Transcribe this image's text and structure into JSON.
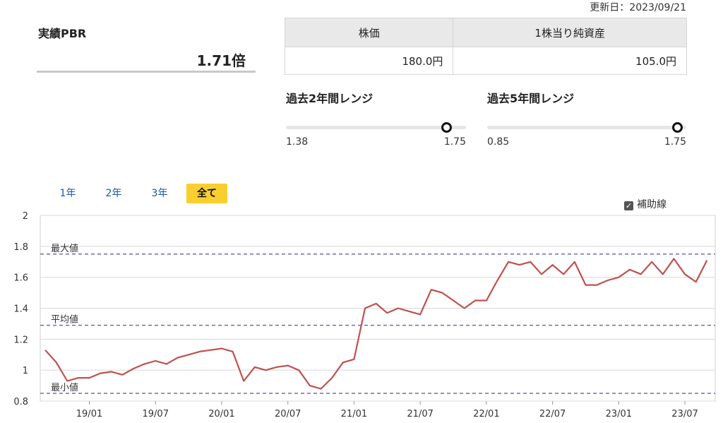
{
  "updated": "更新日：2023/09/21",
  "pbr": {
    "label": "実績PBR",
    "value": "1.71倍"
  },
  "price_table": {
    "headers": [
      "株価",
      "1株当り純資産"
    ],
    "values": [
      "180.0円",
      "105.0円"
    ]
  },
  "ranges": [
    {
      "title": "過去2年間レンジ",
      "min": "1.38",
      "max": "1.75",
      "min_val": 1.38,
      "max_val": 1.75,
      "current": 1.71
    },
    {
      "title": "過去5年間レンジ",
      "min": "0.85",
      "max": "1.75",
      "min_val": 0.85,
      "max_val": 1.75,
      "current": 1.71
    }
  ],
  "tabs": [
    {
      "label": "1年",
      "active": false
    },
    {
      "label": "2年",
      "active": false
    },
    {
      "label": "3年",
      "active": false
    },
    {
      "label": "全て",
      "active": true
    }
  ],
  "aux_lines": {
    "label": "補助線",
    "checked": true
  },
  "chart_data": {
    "type": "line",
    "x_ticks": [
      "19/01",
      "19/07",
      "20/01",
      "20/07",
      "21/01",
      "21/07",
      "22/01",
      "22/07",
      "23/01",
      "23/07"
    ],
    "y_ticks": [
      "0.8",
      "1",
      "1.2",
      "1.4",
      "1.6",
      "1.8",
      "2"
    ],
    "ylim": [
      0.8,
      2.0
    ],
    "xlim": [
      "2018-09",
      "2023-09"
    ],
    "grid": true,
    "color": "#c0504d",
    "reference_lines": [
      {
        "name": "最大値",
        "value": 1.75
      },
      {
        "name": "平均値",
        "value": 1.29
      },
      {
        "name": "最小値",
        "value": 0.85
      }
    ],
    "series": [
      {
        "values": [
          [
            "2018-09",
            1.13
          ],
          [
            "2018-10",
            1.05
          ],
          [
            "2018-11",
            0.93
          ],
          [
            "2018-12",
            0.95
          ],
          [
            "2019-01",
            0.95
          ],
          [
            "2019-02",
            0.98
          ],
          [
            "2019-03",
            0.99
          ],
          [
            "2019-04",
            0.97
          ],
          [
            "2019-05",
            1.01
          ],
          [
            "2019-06",
            1.04
          ],
          [
            "2019-07",
            1.06
          ],
          [
            "2019-08",
            1.04
          ],
          [
            "2019-09",
            1.08
          ],
          [
            "2019-10",
            1.1
          ],
          [
            "2019-11",
            1.12
          ],
          [
            "2019-12",
            1.13
          ],
          [
            "2020-01",
            1.14
          ],
          [
            "2020-02",
            1.12
          ],
          [
            "2020-03",
            0.93
          ],
          [
            "2020-04",
            1.02
          ],
          [
            "2020-05",
            1.0
          ],
          [
            "2020-06",
            1.02
          ],
          [
            "2020-07",
            1.03
          ],
          [
            "2020-08",
            1.0
          ],
          [
            "2020-09",
            0.9
          ],
          [
            "2020-10",
            0.88
          ],
          [
            "2020-11",
            0.95
          ],
          [
            "2020-12",
            1.05
          ],
          [
            "2021-01",
            1.07
          ],
          [
            "2021-02",
            1.4
          ],
          [
            "2021-03",
            1.43
          ],
          [
            "2021-04",
            1.37
          ],
          [
            "2021-05",
            1.4
          ],
          [
            "2021-06",
            1.38
          ],
          [
            "2021-07",
            1.36
          ],
          [
            "2021-08",
            1.52
          ],
          [
            "2021-09",
            1.5
          ],
          [
            "2021-10",
            1.45
          ],
          [
            "2021-11",
            1.4
          ],
          [
            "2021-12",
            1.45
          ],
          [
            "2022-01",
            1.45
          ],
          [
            "2022-02",
            1.58
          ],
          [
            "2022-03",
            1.7
          ],
          [
            "2022-04",
            1.68
          ],
          [
            "2022-05",
            1.7
          ],
          [
            "2022-06",
            1.62
          ],
          [
            "2022-07",
            1.68
          ],
          [
            "2022-08",
            1.62
          ],
          [
            "2022-09",
            1.7
          ],
          [
            "2022-10",
            1.55
          ],
          [
            "2022-11",
            1.55
          ],
          [
            "2022-12",
            1.58
          ],
          [
            "2023-01",
            1.6
          ],
          [
            "2023-02",
            1.65
          ],
          [
            "2023-03",
            1.62
          ],
          [
            "2023-04",
            1.7
          ],
          [
            "2023-05",
            1.62
          ],
          [
            "2023-06",
            1.72
          ],
          [
            "2023-07",
            1.62
          ],
          [
            "2023-08",
            1.57
          ],
          [
            "2023-09",
            1.71
          ]
        ]
      }
    ]
  }
}
